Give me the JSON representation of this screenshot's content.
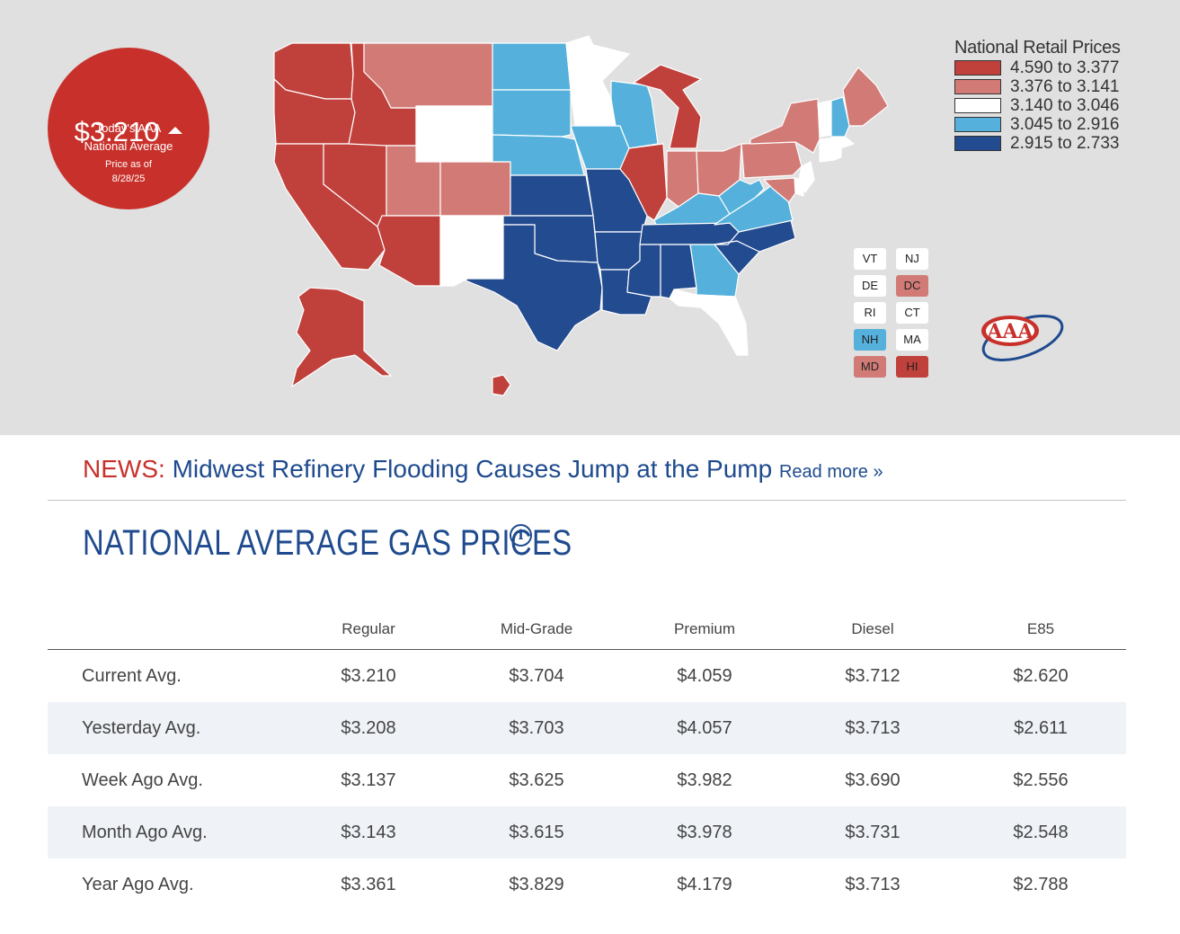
{
  "badge": {
    "line1": "Today's AAA",
    "line2": "National Average",
    "price": "$3.210",
    "asof_label": "Price as of",
    "asof_date": "8/28/25"
  },
  "legend": {
    "title": "National Retail Prices",
    "bins": [
      {
        "range": "4.590 to 3.377",
        "color": "#c0403b"
      },
      {
        "range": "3.376 to 3.141",
        "color": "#d27b76"
      },
      {
        "range": "3.140 to 3.046",
        "color": "#ffffff"
      },
      {
        "range": "3.045 to 2.916",
        "color": "#55b1db"
      },
      {
        "range": "2.915 to 2.733",
        "color": "#234b8f"
      }
    ]
  },
  "small_states": [
    {
      "abbr": "VT",
      "bin": 2
    },
    {
      "abbr": "NJ",
      "bin": 2
    },
    {
      "abbr": "DE",
      "bin": 2
    },
    {
      "abbr": "DC",
      "bin": 1
    },
    {
      "abbr": "RI",
      "bin": 2
    },
    {
      "abbr": "CT",
      "bin": 2
    },
    {
      "abbr": "NH",
      "bin": 3
    },
    {
      "abbr": "MA",
      "bin": 2
    },
    {
      "abbr": "MD",
      "bin": 1
    },
    {
      "abbr": "HI",
      "bin": 0
    }
  ],
  "state_bins": {
    "WA": 0,
    "OR": 0,
    "CA": 0,
    "NV": 0,
    "ID": 0,
    "AZ": 0,
    "AK": 0,
    "HI": 0,
    "IL": 0,
    "MI": 0,
    "MT": 1,
    "UT": 1,
    "CO": 1,
    "IN": 1,
    "OH": 1,
    "PA": 1,
    "NY": 1,
    "ME": 1,
    "MD": 1,
    "DC": 1,
    "WY": 2,
    "NM": 2,
    "MN": 2,
    "FL": 2,
    "VT": 2,
    "MA": 2,
    "CT": 2,
    "RI": 2,
    "NJ": 2,
    "DE": 2,
    "ND": 3,
    "SD": 3,
    "NE": 3,
    "IA": 3,
    "WI": 3,
    "KY": 3,
    "WV": 3,
    "VA": 3,
    "GA": 3,
    "NH": 3,
    "KS": 4,
    "OK": 4,
    "TX": 4,
    "MO": 4,
    "AR": 4,
    "LA": 4,
    "MS": 4,
    "AL": 4,
    "TN": 4,
    "NC": 4,
    "SC": 4
  },
  "logo_text": "AAA",
  "news": {
    "tag": "NEWS:",
    "headline": "Midwest Refinery Flooding Causes Jump at the Pump",
    "read_more": "Read more »"
  },
  "section_title": "NATIONAL AVERAGE GAS PRICES",
  "info_icon": "info-icon",
  "table": {
    "headers": [
      "Regular",
      "Mid-Grade",
      "Premium",
      "Diesel",
      "E85"
    ],
    "rows": [
      {
        "label": "Current Avg.",
        "values": [
          "$3.210",
          "$3.704",
          "$4.059",
          "$3.712",
          "$2.620"
        ]
      },
      {
        "label": "Yesterday Avg.",
        "values": [
          "$3.208",
          "$3.703",
          "$4.057",
          "$3.713",
          "$2.611"
        ]
      },
      {
        "label": "Week Ago Avg.",
        "values": [
          "$3.137",
          "$3.625",
          "$3.982",
          "$3.690",
          "$2.556"
        ]
      },
      {
        "label": "Month Ago Avg.",
        "values": [
          "$3.143",
          "$3.615",
          "$3.978",
          "$3.731",
          "$2.548"
        ]
      },
      {
        "label": "Year Ago Avg.",
        "values": [
          "$3.361",
          "$3.829",
          "$4.179",
          "$3.713",
          "$2.788"
        ]
      }
    ]
  }
}
